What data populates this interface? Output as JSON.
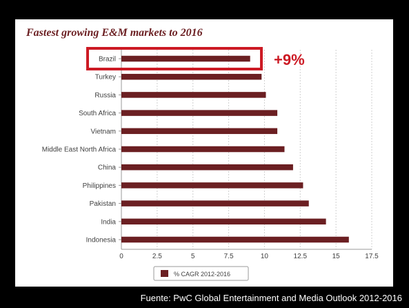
{
  "chart_data": {
    "type": "bar",
    "orientation": "horizontal",
    "title": "Fastest growing E&M markets to 2016",
    "categories": [
      "Brazil",
      "Turkey",
      "Russia",
      "South Africa",
      "Vietnam",
      "Middle East North Africa",
      "China",
      "Philippines",
      "Pakistan",
      "India",
      "Indonesia"
    ],
    "series": [
      {
        "name": "% CAGR 2012-2016",
        "values": [
          9.0,
          9.8,
          10.1,
          10.9,
          10.9,
          11.4,
          12.0,
          12.7,
          13.1,
          14.3,
          15.9
        ]
      }
    ],
    "xlim": [
      0,
      17.5
    ],
    "xticks": [
      "0",
      "2.5",
      "5",
      "7.5",
      "10",
      "12.5",
      "15",
      "17.5"
    ],
    "grid": "vertical",
    "legend": "bottom-center",
    "annotation": {
      "label": "+9%",
      "target": "Brazil"
    },
    "colors": {
      "bar": "#6b1f22",
      "highlight": "#cc1a24",
      "title": "#6b1f22",
      "grid": "#cfcfcf",
      "axis_text": "#404040",
      "plot_bg": "#ffffff",
      "frame_bg": "#000000"
    }
  },
  "source_note": "Fuente: PwC Global Entertainment and Media Outlook 2012-2016"
}
